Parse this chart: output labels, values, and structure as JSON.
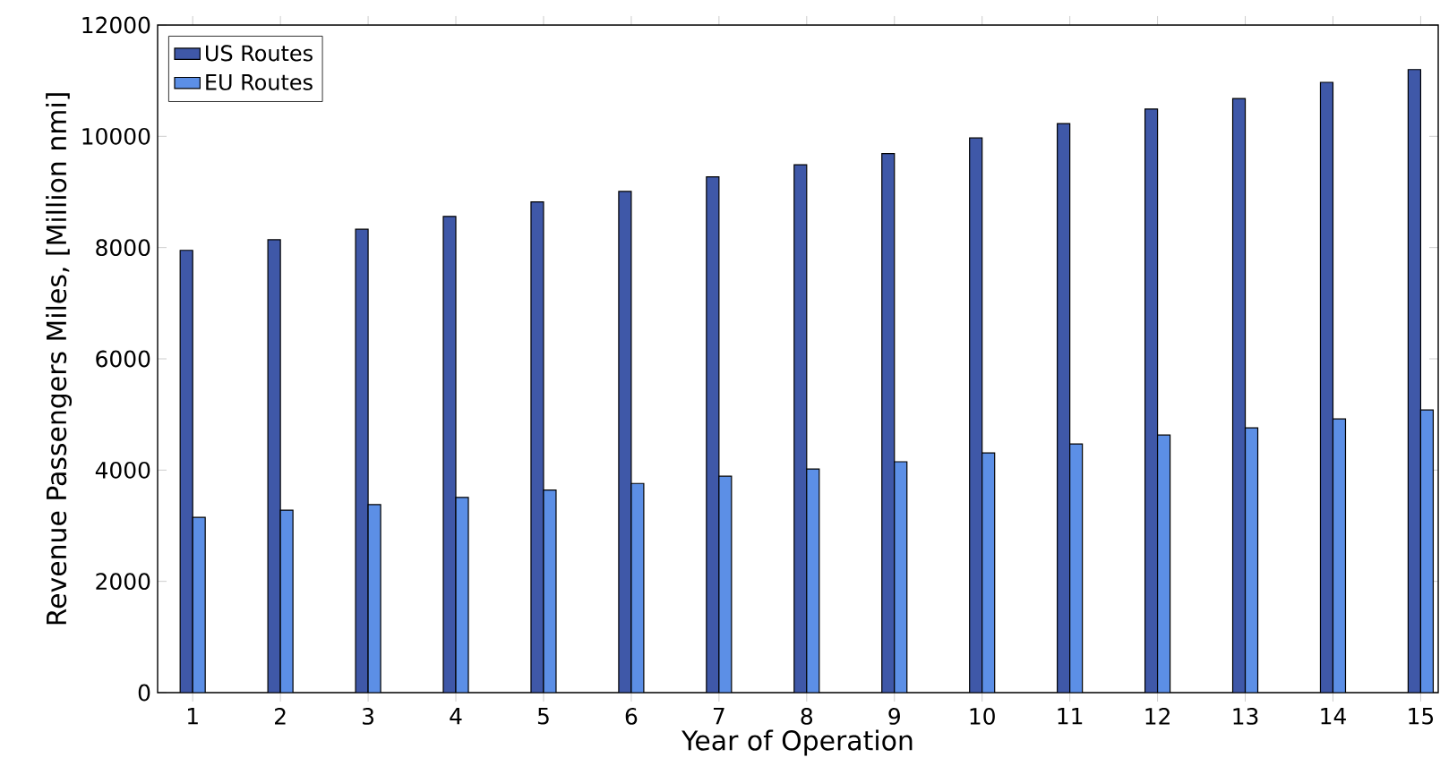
{
  "chart_data": {
    "type": "bar",
    "xlabel": "Year of Operation",
    "ylabel": "Revenue Passengers Miles, [Million nmi]",
    "categories": [
      "1",
      "2",
      "3",
      "4",
      "5",
      "6",
      "7",
      "8",
      "9",
      "10",
      "11",
      "12",
      "13",
      "14",
      "15"
    ],
    "series": [
      {
        "name": "US Routes",
        "color": "#3f58a8",
        "values": [
          7950,
          8140,
          8330,
          8560,
          8820,
          9010,
          9270,
          9490,
          9690,
          9970,
          10230,
          10490,
          10680,
          10970,
          11200
        ]
      },
      {
        "name": "EU Routes",
        "color": "#5c8fe6",
        "values": [
          3150,
          3280,
          3380,
          3510,
          3640,
          3760,
          3890,
          4020,
          4150,
          4310,
          4470,
          4630,
          4760,
          4920,
          5080
        ]
      }
    ],
    "ylim": [
      0,
      12000
    ],
    "yticks": [
      0,
      2000,
      4000,
      6000,
      8000,
      10000,
      12000
    ],
    "legend": "top left"
  }
}
